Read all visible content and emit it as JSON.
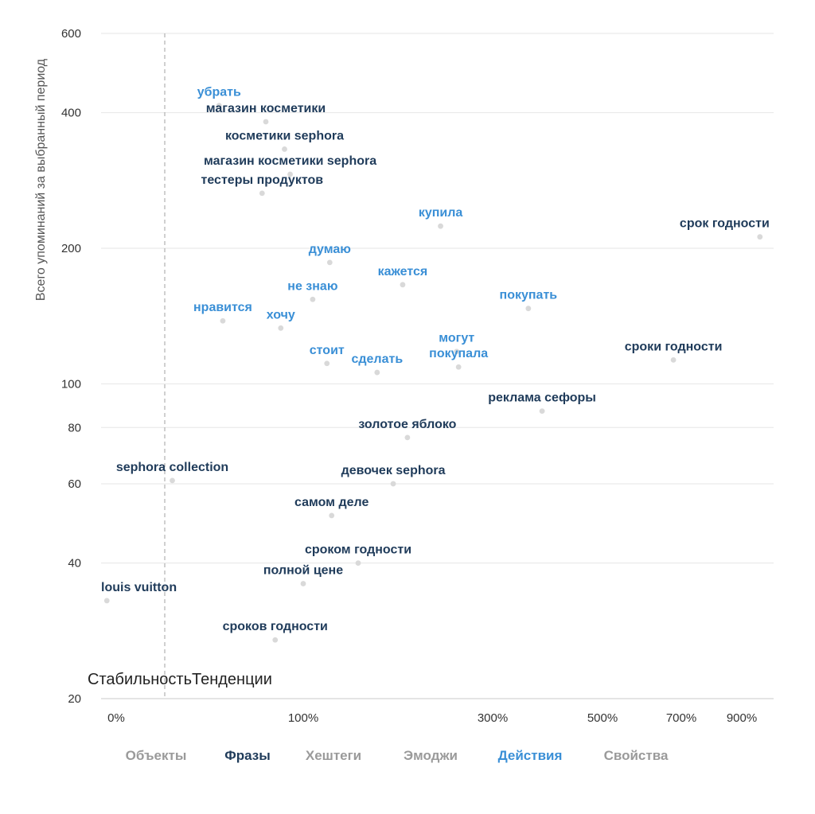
{
  "chart_data": {
    "type": "scatter",
    "ylabel": "Всего упоминаний за выбранный период",
    "y_scale": "log",
    "ylim": [
      20,
      600
    ],
    "y_ticks": [
      20,
      40,
      60,
      80,
      100,
      200,
      400,
      600
    ],
    "x_ticks": [
      "0%",
      "100%",
      "300%",
      "500%",
      "700%",
      "900%"
    ],
    "zone_labels": {
      "left": "Стабильность",
      "right": "Тенденции"
    },
    "colors": {
      "phrase": "#1f3b5a",
      "action": "#3a8fd6",
      "point": "#d9d9d9",
      "grid": "#e6e6e6",
      "divider": "#b0b0b0"
    },
    "points": [
      {
        "label": "убрать",
        "kind": "action",
        "x": 55,
        "y": 415
      },
      {
        "label": "магазин косметики",
        "kind": "phrase",
        "x": 80,
        "y": 382
      },
      {
        "label": "косметики sephora",
        "kind": "phrase",
        "x": 90,
        "y": 332
      },
      {
        "label": "магазин косметики sephora",
        "kind": "phrase",
        "x": 93,
        "y": 292
      },
      {
        "label": "тестеры продуктов",
        "kind": "phrase",
        "x": 78,
        "y": 265
      },
      {
        "label": "купила",
        "kind": "action",
        "x": 245,
        "y": 224
      },
      {
        "label": "срок годности",
        "kind": "phrase",
        "x": 960,
        "y": 212
      },
      {
        "label": "думаю",
        "kind": "action",
        "x": 128,
        "y": 186
      },
      {
        "label": "кажется",
        "kind": "action",
        "x": 205,
        "y": 166
      },
      {
        "label": "не знаю",
        "kind": "action",
        "x": 110,
        "y": 154
      },
      {
        "label": "покупать",
        "kind": "action",
        "x": 365,
        "y": 147
      },
      {
        "label": "нравится",
        "kind": "action",
        "x": 57,
        "y": 138
      },
      {
        "label": "хочу",
        "kind": "action",
        "x": 88,
        "y": 133
      },
      {
        "label": "могут",
        "kind": "action",
        "x": 262,
        "y": 118
      },
      {
        "label": "сроки годности",
        "kind": "phrase",
        "x": 680,
        "y": 113
      },
      {
        "label": "покупала",
        "kind": "action",
        "x": 264,
        "y": 109
      },
      {
        "label": "стоит",
        "kind": "action",
        "x": 125,
        "y": 111
      },
      {
        "label": "сделать",
        "kind": "action",
        "x": 178,
        "y": 106
      },
      {
        "label": "реклама сефоры",
        "kind": "phrase",
        "x": 390,
        "y": 87
      },
      {
        "label": "золотое яблоко",
        "kind": "phrase",
        "x": 210,
        "y": 76
      },
      {
        "label": "sephora collection",
        "kind": "phrase",
        "x": 30,
        "y": 61
      },
      {
        "label": "девочек sephora",
        "kind": "phrase",
        "x": 195,
        "y": 60
      },
      {
        "label": "самом деле",
        "kind": "phrase",
        "x": 130,
        "y": 51
      },
      {
        "label": "сроком годности",
        "kind": "phrase",
        "x": 158,
        "y": 40
      },
      {
        "label": "полной цене",
        "kind": "phrase",
        "x": 100,
        "y": 36
      },
      {
        "label": "louis vuitton",
        "kind": "phrase",
        "x": -5,
        "y": 33
      },
      {
        "label": "сроков годности",
        "kind": "phrase",
        "x": 85,
        "y": 27
      }
    ]
  },
  "tabs": [
    {
      "label": "Объекты",
      "state": "inactive"
    },
    {
      "label": "Фразы",
      "state": "active-dark"
    },
    {
      "label": "Хештеги",
      "state": "inactive"
    },
    {
      "label": "Эмоджи",
      "state": "inactive"
    },
    {
      "label": "Действия",
      "state": "active-blue"
    },
    {
      "label": "Свойства",
      "state": "inactive"
    }
  ]
}
